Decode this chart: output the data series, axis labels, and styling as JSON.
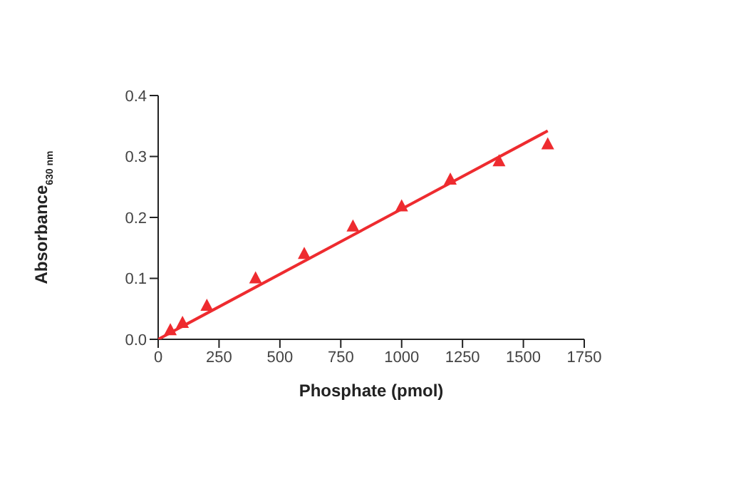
{
  "chart_data": {
    "type": "scatter",
    "xlabel": "Phosphate (pmol)",
    "ylabel": "Absorbance$_{630 nm}$",
    "xlim": [
      0,
      1750
    ],
    "xticks": [
      0,
      250,
      500,
      750,
      1000,
      1250,
      1500,
      1750
    ],
    "ylim": [
      0,
      0.4
    ],
    "yticks": [
      {
        "value": 0,
        "label": "0.0"
      },
      0.1,
      0.2,
      0.3,
      0.4
    ],
    "grid": false,
    "legend": false,
    "series": [
      {
        "color": "#ee2b2f",
        "marker": "triangle",
        "x": [
          50,
          100,
          200,
          400,
          600,
          800,
          1000,
          1200,
          1400,
          1600
        ],
        "values": [
          0.015,
          0.027,
          0.055,
          0.1,
          0.14,
          0.185,
          0.218,
          0.262,
          0.292,
          0.32
        ]
      },
      {
        "type": "line",
        "color": "#ee2b2f",
        "marker": "none",
        "line_style": "solid",
        "x": [
          0,
          1600
        ],
        "values": [
          0,
          0.342
        ]
      }
    ]
  }
}
